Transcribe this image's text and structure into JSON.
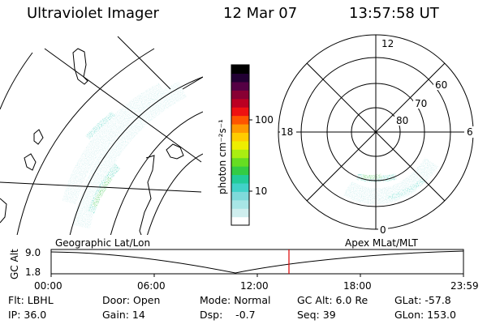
{
  "header": {
    "title": "Ultraviolet Imager",
    "date": "12 Mar 07",
    "time": "13:57:58 UT"
  },
  "colorbar": {
    "unit_label": "photon cm⁻²s⁻¹",
    "ticks": [
      "100",
      "10"
    ],
    "colors": [
      "#ffffff",
      "#cfeeee",
      "#a8e6e6",
      "#7fdada",
      "#41d2c8",
      "#22cc99",
      "#33cc44",
      "#66dd22",
      "#aaee11",
      "#eeee00",
      "#ffcc00",
      "#ff9900",
      "#ff5500",
      "#ee1111",
      "#bb0022",
      "#880033",
      "#550044",
      "#220033",
      "#000000"
    ]
  },
  "left_map": {
    "label": "Geographic Lat/Lon"
  },
  "polar_map": {
    "label": "Apex MLat/MLT",
    "mlt_labels": {
      "top": "12",
      "left": "18",
      "right": "6",
      "bottom": "0"
    },
    "lat_labels": [
      "60",
      "70",
      "80"
    ]
  },
  "altitude_plot": {
    "ylabel": "GC Alt",
    "y_ticks": [
      "9.0",
      "1.8"
    ],
    "x_ticks": [
      "00:00",
      "06:00",
      "12:00",
      "18:00",
      "23:59"
    ],
    "marker_color": "#dd0000"
  },
  "status": {
    "filter": "Flt: LBHL",
    "ip": "IP: 36.0",
    "door": "Door: Open",
    "gain": "Gain: 14",
    "mode": "Mode: Normal",
    "dsp": "Dsp:    -0.7",
    "gc_alt": "GC Alt: 6.0 Re",
    "seq": "Seq: 39",
    "glat": "GLat: -57.8",
    "glon": "GLon: 153.0"
  }
}
